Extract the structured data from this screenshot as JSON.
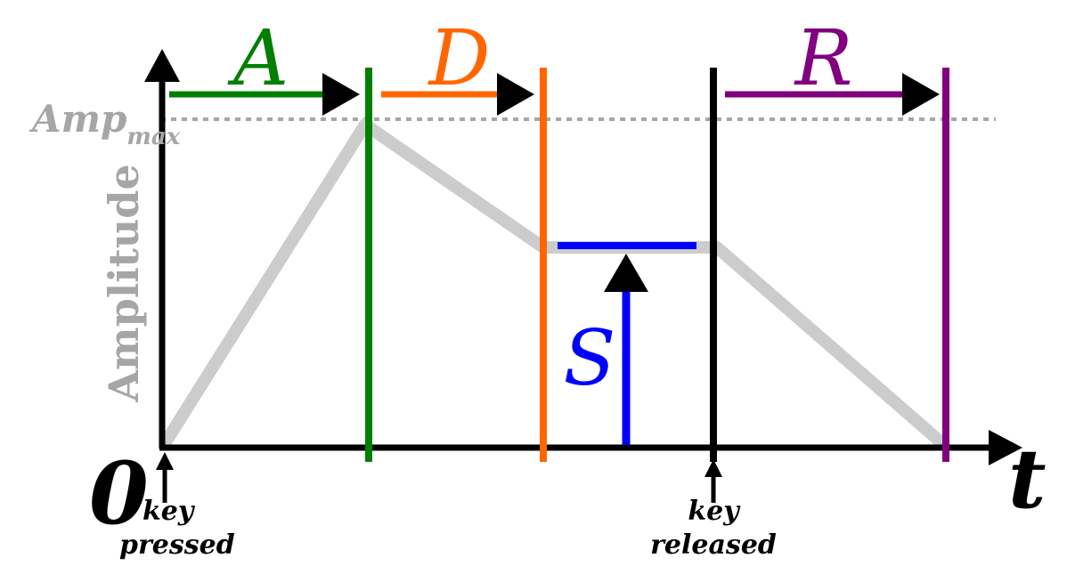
{
  "diagram": {
    "title": "",
    "phases": {
      "attack": {
        "label": "A",
        "color": "#008000"
      },
      "decay": {
        "label": "D",
        "color": "#ff6600"
      },
      "sustain": {
        "label": "S",
        "color": "#0000ff"
      },
      "release": {
        "label": "R",
        "color": "#800080"
      }
    },
    "y_axis_label": "Amplitude",
    "x_axis_label": "t",
    "origin_label": "0",
    "amp_max_label": {
      "base": "Amp",
      "subscript": "max"
    },
    "key_pressed": {
      "line1": "key",
      "line2": "pressed"
    },
    "key_released": {
      "line1": "key",
      "line2": "released"
    },
    "envelope_color": "#cccccc",
    "axis_color": "#000000",
    "label_gray": "#a6a6a6"
  }
}
